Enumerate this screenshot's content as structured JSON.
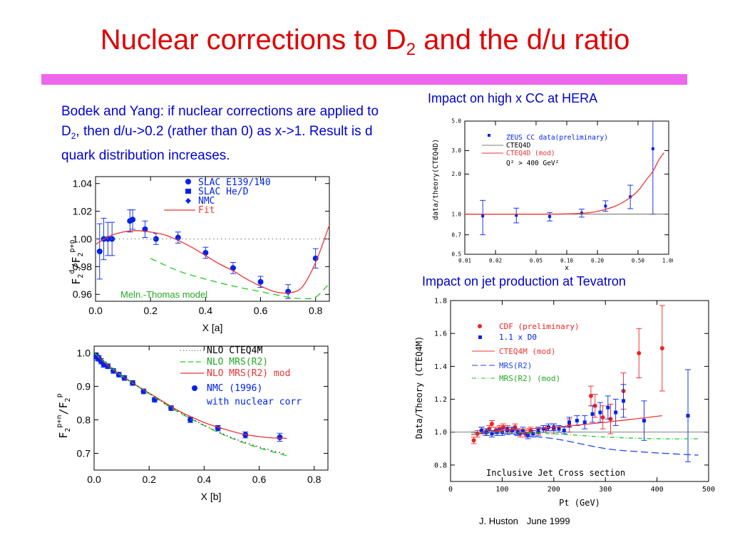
{
  "slide": {
    "title_main": "Nuclear corrections to D",
    "title_sub": "2",
    "title_rest": " and the d/u ratio",
    "accent_color": "#ee66ee",
    "title_color": "#e00000"
  },
  "body_text": {
    "part1": "Bodek and Yang: if nuclear corrections are applied to D",
    "sub": "2",
    "part2": ", then d/u->0.2 (rather than 0) as x->1. Result is d quark distribution increases."
  },
  "captions": {
    "hera": "Impact on high x CC at HERA",
    "tevatron": "Impact on jet production at Tevatron"
  },
  "footer": {
    "author": "J. Huston",
    "date": "June 1999"
  },
  "chart_data": [
    {
      "id": "plot_a",
      "type": "scatter",
      "xlabel": "X [a]",
      "ylabel": "F2d/F2p+n",
      "xlim": [
        0,
        0.85
      ],
      "ylim": [
        0.955,
        1.045
      ],
      "xticks": [
        "0.0",
        "0.2",
        "0.4",
        "0.6",
        "0.8"
      ],
      "yticks": [
        "0.96",
        "0.98",
        "1.00",
        "1.02",
        "1.04"
      ],
      "legend": {
        "slac_e139": "SLAC E139/140",
        "slac_hed": "SLAC He/D",
        "nmc": "NMC",
        "fit": "Fit"
      },
      "annotation": "Meln.-Thomas model",
      "series": [
        {
          "name": "SLAC E139/140",
          "marker": "circle",
          "x": [
            0.015,
            0.03,
            0.045,
            0.06,
            0.125,
            0.135,
            0.18,
            0.22,
            0.3,
            0.4,
            0.5,
            0.6,
            0.7,
            0.8
          ],
          "y": [
            0.991,
            1.0,
            1.0,
            1.0,
            1.013,
            1.014,
            1.007,
            1.0,
            1.001,
            0.99,
            0.979,
            0.969,
            0.962,
            0.986
          ],
          "err": [
            0.02,
            0.015,
            0.012,
            0.012,
            0.008,
            0.007,
            0.006,
            0.004,
            0.004,
            0.004,
            0.004,
            0.004,
            0.005,
            0.007
          ]
        },
        {
          "name": "Fit",
          "type": "line",
          "x": [
            0.0,
            0.05,
            0.1,
            0.15,
            0.2,
            0.25,
            0.3,
            0.35,
            0.4,
            0.45,
            0.5,
            0.55,
            0.6,
            0.65,
            0.7,
            0.75,
            0.8,
            0.85
          ],
          "y": [
            0.996,
            1.002,
            1.005,
            1.006,
            1.005,
            1.003,
            0.999,
            0.994,
            0.988,
            0.982,
            0.977,
            0.971,
            0.966,
            0.962,
            0.961,
            0.965,
            0.983,
            1.01
          ]
        },
        {
          "name": "Meln.-Thomas model",
          "type": "dashed",
          "x": [
            0.2,
            0.3,
            0.4,
            0.5,
            0.6,
            0.7,
            0.75,
            0.8,
            0.85
          ],
          "y": [
            0.986,
            0.977,
            0.971,
            0.966,
            0.962,
            0.958,
            0.957,
            0.958,
            0.968
          ]
        },
        {
          "name": "reference",
          "type": "dotted",
          "x": [
            0.0,
            0.85
          ],
          "y": [
            1.0,
            1.0
          ]
        }
      ]
    },
    {
      "id": "plot_b",
      "type": "scatter",
      "xlabel": "X [b]",
      "ylabel": "F2p+n/F2p",
      "xlim": [
        0,
        0.85
      ],
      "ylim": [
        0.65,
        1.02
      ],
      "xticks": [
        "0.0",
        "0.2",
        "0.4",
        "0.6",
        "0.8"
      ],
      "yticks": [
        "0.7",
        "0.8",
        "0.9",
        "1.0"
      ],
      "legend": {
        "cteq4m": "NLO CTEQ4M",
        "mrsr2": "NLO MRS(R2)",
        "mrsr2mod": "NLO MRS(R2) mod",
        "nmc1": "NMC (1996)",
        "nmc2": "with nuclear corr"
      },
      "series": [
        {
          "name": "NMC (1996)",
          "marker": "circle",
          "x": [
            0.008,
            0.0125,
            0.0175,
            0.025,
            0.035,
            0.05,
            0.07,
            0.09,
            0.11,
            0.14,
            0.18,
            0.22,
            0.28,
            0.35,
            0.45,
            0.55,
            0.675
          ],
          "y": [
            0.99,
            0.985,
            0.983,
            0.975,
            0.965,
            0.96,
            0.946,
            0.935,
            0.925,
            0.91,
            0.885,
            0.86,
            0.835,
            0.8,
            0.775,
            0.755,
            0.748
          ],
          "err": [
            0.008,
            0.008,
            0.008,
            0.008,
            0.008,
            0.007,
            0.007,
            0.007,
            0.007,
            0.007,
            0.007,
            0.007,
            0.007,
            0.008,
            0.008,
            0.009,
            0.012
          ]
        },
        {
          "name": "NLO MRS(R2) mod",
          "type": "line",
          "x": [
            0.0,
            0.05,
            0.1,
            0.15,
            0.2,
            0.25,
            0.3,
            0.35,
            0.4,
            0.45,
            0.5,
            0.55,
            0.6,
            0.65,
            0.7
          ],
          "y": [
            1.0,
            0.963,
            0.932,
            0.905,
            0.88,
            0.855,
            0.83,
            0.81,
            0.792,
            0.778,
            0.766,
            0.756,
            0.75,
            0.746,
            0.745
          ]
        },
        {
          "name": "NLO MRS(R2)",
          "type": "dashed",
          "x": [
            0.0,
            0.1,
            0.2,
            0.3,
            0.4,
            0.5,
            0.6,
            0.7
          ],
          "y": [
            1.0,
            0.932,
            0.878,
            0.826,
            0.783,
            0.745,
            0.716,
            0.693
          ]
        },
        {
          "name": "NLO CTEQ4M",
          "type": "dotted",
          "x": [
            0.0,
            0.1,
            0.2,
            0.3,
            0.4,
            0.5,
            0.6,
            0.7
          ],
          "y": [
            1.0,
            0.933,
            0.879,
            0.828,
            0.784,
            0.747,
            0.719,
            0.697
          ]
        }
      ]
    },
    {
      "id": "plot_hera",
      "type": "scatter",
      "xlabel": "x",
      "ylabel": "data/theory(CTEQ4D)",
      "xscale": "log",
      "yscale": "log",
      "xlim": [
        0.01,
        1.0
      ],
      "ylim": [
        0.5,
        5.0
      ],
      "xticks": [
        "0.01",
        "0.02",
        "0.05",
        "0.10",
        "0.20",
        "0.50",
        "1.00"
      ],
      "yticks": [
        "0.5",
        "0.7",
        "1.0",
        "2.0",
        "3.0",
        "5.0"
      ],
      "legend": {
        "zeus": "ZEUS CC data(preliminary)",
        "cteq4d": "CTEQ4D",
        "cteq4dmod": "CTEQ4D (mod)",
        "q2": "Q² > 400 GeV²"
      },
      "series": [
        {
          "name": "ZEUS CC data(preliminary)",
          "marker": "square",
          "x": [
            0.015,
            0.032,
            0.068,
            0.14,
            0.24,
            0.42,
            0.7
          ],
          "y": [
            0.97,
            0.98,
            0.96,
            1.02,
            1.15,
            1.35,
            3.1
          ],
          "err_lo": [
            0.27,
            0.12,
            0.07,
            0.07,
            0.1,
            0.25,
            2.1
          ],
          "err_hi": [
            0.3,
            0.13,
            0.07,
            0.07,
            0.11,
            0.3,
            2.5
          ]
        },
        {
          "name": "CTEQ4D",
          "type": "thin",
          "x": [
            0.01,
            1.0
          ],
          "y": [
            1.0,
            1.0
          ]
        },
        {
          "name": "CTEQ4D (mod)",
          "type": "line",
          "x": [
            0.01,
            0.05,
            0.1,
            0.15,
            0.2,
            0.3,
            0.4,
            0.5,
            0.6,
            0.7,
            0.8,
            0.9
          ],
          "y": [
            1.0,
            1.0,
            1.005,
            1.02,
            1.05,
            1.15,
            1.3,
            1.5,
            1.8,
            2.1,
            2.55,
            2.9
          ]
        }
      ]
    },
    {
      "id": "plot_tev",
      "type": "scatter",
      "xlabel": "Pt (GeV)",
      "ylabel": "Data/Theory (CTEQ4M)",
      "xlim": [
        0,
        500
      ],
      "ylim": [
        0.7,
        1.8
      ],
      "xticks": [
        "0",
        "100",
        "200",
        "300",
        "400",
        "500"
      ],
      "yticks": [
        "0.8",
        "1.0",
        "1.2",
        "1.4",
        "1.6",
        "1.8"
      ],
      "legend": {
        "cdf": "CDF (preliminary)",
        "d0": "1.1 x D0",
        "cteq4m": "CTEQ4M (mod)",
        "mrsr2": "MRS(R2)",
        "mrsr2mod": "MRS(R2) (mod)"
      },
      "annotation": "Inclusive Jet Cross section",
      "series": [
        {
          "name": "CDF (preliminary)",
          "marker": "circle",
          "x": [
            45,
            52,
            60,
            68,
            75,
            80,
            88,
            95,
            102,
            110,
            118,
            125,
            135,
            145,
            155,
            170,
            185,
            200,
            230,
            272,
            280,
            295,
            310,
            335,
            365,
            410
          ],
          "y": [
            0.95,
            0.99,
            1.01,
            1.0,
            1.02,
            1.05,
            1.01,
            1.02,
            1.03,
            1.02,
            1.01,
            1.03,
            0.99,
            0.99,
            1.01,
            1.0,
            1.02,
            1.02,
            1.04,
            1.22,
            1.16,
            1.09,
            1.08,
            1.25,
            1.48,
            1.51
          ],
          "err": [
            0.02,
            0.02,
            0.02,
            0.02,
            0.02,
            0.02,
            0.02,
            0.02,
            0.02,
            0.02,
            0.02,
            0.02,
            0.02,
            0.02,
            0.02,
            0.02,
            0.02,
            0.03,
            0.04,
            0.06,
            0.07,
            0.07,
            0.09,
            0.11,
            0.15,
            0.26
          ]
        },
        {
          "name": "1.1 x D0",
          "marker": "square",
          "x": [
            60,
            70,
            80,
            90,
            100,
            110,
            120,
            130,
            140,
            150,
            160,
            170,
            180,
            190,
            200,
            210,
            220,
            230,
            245,
            260,
            275,
            290,
            305,
            320,
            335,
            375,
            460
          ],
          "y": [
            1.01,
            1.0,
            0.99,
            1.0,
            1.0,
            1.01,
            1.01,
            1.0,
            1.01,
            0.98,
            0.99,
            1.01,
            1.02,
            1.03,
            1.03,
            1.02,
            1.01,
            1.06,
            1.07,
            1.06,
            1.11,
            1.12,
            1.15,
            1.12,
            1.19,
            1.07,
            1.1
          ],
          "err": [
            0.02,
            0.02,
            0.02,
            0.02,
            0.02,
            0.02,
            0.02,
            0.02,
            0.02,
            0.02,
            0.02,
            0.02,
            0.02,
            0.02,
            0.02,
            0.02,
            0.02,
            0.03,
            0.03,
            0.04,
            0.05,
            0.06,
            0.07,
            0.08,
            0.1,
            0.12,
            0.28
          ]
        },
        {
          "name": "CTEQ4M (mod)",
          "type": "line",
          "x": [
            40,
            100,
            200,
            300,
            410
          ],
          "y": [
            0.985,
            1.01,
            1.03,
            1.06,
            1.1
          ]
        },
        {
          "name": "MRS(R2)",
          "type": "dashed",
          "x": [
            40,
            100,
            200,
            300,
            370,
            420,
            480
          ],
          "y": [
            1.0,
            0.99,
            0.96,
            0.9,
            0.88,
            0.87,
            0.86
          ]
        },
        {
          "name": "MRS(R2) (mod)",
          "type": "dashdot",
          "x": [
            40,
            100,
            200,
            300,
            400,
            480
          ],
          "y": [
            1.0,
            1.0,
            0.99,
            0.97,
            0.96,
            0.96
          ]
        },
        {
          "name": "reference",
          "type": "thin",
          "x": [
            0,
            500
          ],
          "y": [
            1.0,
            1.0
          ]
        }
      ]
    }
  ]
}
